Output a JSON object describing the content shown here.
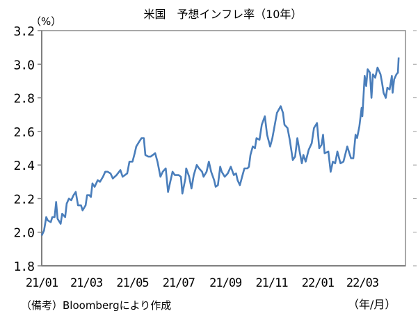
{
  "chart_data": {
    "type": "line",
    "title": "米国　予想インフレ率（10年）",
    "ylabel": "（%）",
    "xlabel": "（年/月）",
    "note": "（備考）Bloombergにより作成",
    "ylim": [
      1.8,
      3.2
    ],
    "yticks": [
      "1.8",
      "2.0",
      "2.2",
      "2.4",
      "2.6",
      "2.8",
      "3.0",
      "3.2"
    ],
    "xlim": [
      "2021-01-01",
      "2022-04-27"
    ],
    "xticks": [
      {
        "date": "2021-01-01",
        "label": "21/01"
      },
      {
        "date": "2021-03-01",
        "label": "21/03"
      },
      {
        "date": "2021-05-01",
        "label": "21/05"
      },
      {
        "date": "2021-07-01",
        "label": "21/07"
      },
      {
        "date": "2021-09-01",
        "label": "21/09"
      },
      {
        "date": "2021-11-01",
        "label": "21/11"
      },
      {
        "date": "2022-01-01",
        "label": "22/01"
      },
      {
        "date": "2022-03-01",
        "label": "22/03"
      }
    ],
    "grid": false,
    "line_color": "#4a7ebb",
    "series": [
      {
        "x": [
          "2021-01-01",
          "2021-01-04",
          "2021-01-07",
          "2021-01-09",
          "2021-01-13",
          "2021-01-15",
          "2021-01-18",
          "2021-01-20",
          "2021-01-22",
          "2021-01-26",
          "2021-01-28",
          "2021-02-01",
          "2021-02-03",
          "2021-02-06",
          "2021-02-09",
          "2021-02-12",
          "2021-02-15",
          "2021-02-18",
          "2021-02-22",
          "2021-02-24",
          "2021-02-28",
          "2021-03-02",
          "2021-03-05",
          "2021-03-07",
          "2021-03-09",
          "2021-03-12",
          "2021-03-16",
          "2021-03-19",
          "2021-03-23",
          "2021-03-26",
          "2021-03-29",
          "2021-04-02",
          "2021-04-05",
          "2021-04-10",
          "2021-04-15",
          "2021-04-18",
          "2021-04-24",
          "2021-04-27",
          "2021-05-01",
          "2021-05-04",
          "2021-05-06",
          "2021-05-10",
          "2021-05-13",
          "2021-05-16",
          "2021-05-18",
          "2021-05-22",
          "2021-05-25",
          "2021-05-31",
          "2021-06-03",
          "2021-06-07",
          "2021-06-10",
          "2021-06-14",
          "2021-06-17",
          "2021-06-20",
          "2021-06-23",
          "2021-06-26",
          "2021-07-01",
          "2021-07-04",
          "2021-07-06",
          "2021-07-10",
          "2021-07-11",
          "2021-07-15",
          "2021-07-18",
          "2021-07-21",
          "2021-07-25",
          "2021-07-28",
          "2021-08-01",
          "2021-08-03",
          "2021-08-07",
          "2021-08-10",
          "2021-08-13",
          "2021-08-17",
          "2021-08-19",
          "2021-08-22",
          "2021-08-25",
          "2021-08-27",
          "2021-08-31",
          "2021-09-04",
          "2021-09-08",
          "2021-09-12",
          "2021-09-15",
          "2021-09-17",
          "2021-09-20",
          "2021-09-23",
          "2021-09-26",
          "2021-09-30",
          "2021-10-02",
          "2021-10-04",
          "2021-10-07",
          "2021-10-10",
          "2021-10-12",
          "2021-10-16",
          "2021-10-19",
          "2021-10-23",
          "2021-10-26",
          "2021-10-30",
          "2021-11-02",
          "2021-11-08",
          "2021-11-13",
          "2021-11-16",
          "2021-11-18",
          "2021-11-22",
          "2021-11-25",
          "2021-11-29",
          "2021-12-02",
          "2021-12-05",
          "2021-12-08",
          "2021-12-11",
          "2021-12-13",
          "2021-12-16",
          "2021-12-20",
          "2021-12-24",
          "2021-12-27",
          "2021-12-31",
          "2022-01-03",
          "2022-01-06",
          "2022-01-08",
          "2022-01-10",
          "2022-01-15",
          "2022-01-18",
          "2022-01-21",
          "2022-01-24",
          "2022-01-27",
          "2022-01-31",
          "2022-02-04",
          "2022-02-09",
          "2022-02-14",
          "2022-02-17",
          "2022-02-20",
          "2022-02-22",
          "2022-02-25",
          "2022-02-28",
          "2022-03-01",
          "2022-03-04",
          "2022-03-06",
          "2022-03-08",
          "2022-03-11",
          "2022-03-13",
          "2022-03-15",
          "2022-03-18",
          "2022-03-21",
          "2022-03-25",
          "2022-03-27",
          "2022-03-29",
          "2022-04-01",
          "2022-04-03",
          "2022-04-06",
          "2022-04-09",
          "2022-04-10",
          "2022-04-12",
          "2022-04-15",
          "2022-04-17",
          "2022-04-18"
        ],
        "values": [
          1.98,
          2.01,
          2.09,
          2.07,
          2.06,
          2.09,
          2.09,
          2.18,
          2.08,
          2.05,
          2.11,
          2.09,
          2.17,
          2.2,
          2.19,
          2.22,
          2.24,
          2.16,
          2.16,
          2.13,
          2.16,
          2.22,
          2.22,
          2.21,
          2.29,
          2.27,
          2.31,
          2.3,
          2.33,
          2.36,
          2.36,
          2.35,
          2.32,
          2.34,
          2.37,
          2.33,
          2.35,
          2.42,
          2.42,
          2.47,
          2.51,
          2.54,
          2.56,
          2.56,
          2.46,
          2.45,
          2.45,
          2.47,
          2.42,
          2.33,
          2.36,
          2.38,
          2.24,
          2.3,
          2.36,
          2.34,
          2.34,
          2.33,
          2.23,
          2.32,
          2.38,
          2.33,
          2.26,
          2.34,
          2.4,
          2.38,
          2.36,
          2.33,
          2.36,
          2.42,
          2.36,
          2.31,
          2.27,
          2.28,
          2.39,
          2.36,
          2.33,
          2.35,
          2.39,
          2.34,
          2.35,
          2.31,
          2.28,
          2.33,
          2.38,
          2.38,
          2.39,
          2.46,
          2.51,
          2.5,
          2.56,
          2.55,
          2.64,
          2.69,
          2.58,
          2.51,
          2.56,
          2.71,
          2.75,
          2.71,
          2.64,
          2.62,
          2.55,
          2.43,
          2.45,
          2.56,
          2.48,
          2.41,
          2.46,
          2.42,
          2.49,
          2.53,
          2.62,
          2.65,
          2.5,
          2.52,
          2.58,
          2.47,
          2.48,
          2.36,
          2.42,
          2.41,
          2.48,
          2.41,
          2.42,
          2.51,
          2.44,
          2.44,
          2.58,
          2.56,
          2.63,
          2.74,
          2.69,
          2.93,
          2.87,
          2.97,
          2.95,
          2.8,
          2.94,
          2.92,
          2.98,
          2.94,
          2.89,
          2.83,
          2.8,
          2.86,
          2.85,
          2.93,
          2.83,
          2.91,
          2.94,
          2.95,
          3.04
        ]
      }
    ]
  }
}
